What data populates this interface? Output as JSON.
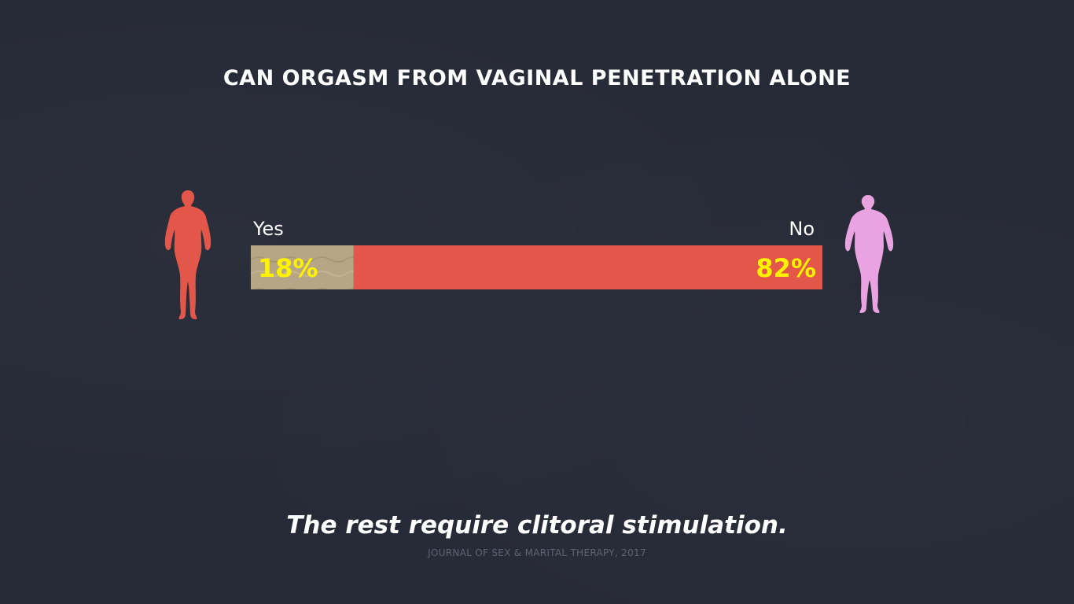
{
  "colors": {
    "background": "#262a36",
    "yes_fill": "#b6a685",
    "no_fill": "#e3574a",
    "value_label": "#fff200",
    "figure_left": "#e3574a",
    "figure_right": "#e8a3e0"
  },
  "chart_data": {
    "type": "bar",
    "orientation": "horizontal-stacked",
    "title": "CAN ORGASM FROM VAGINAL PENETRATION ALONE",
    "categories": [
      "Yes",
      "No"
    ],
    "values": [
      18,
      82
    ],
    "value_labels": [
      "18%",
      "82%"
    ],
    "unit": "%",
    "xlim": [
      0,
      100
    ]
  },
  "caption": "The rest require clitoral stimulation.",
  "source": "JOURNAL OF SEX & MARITAL THERAPY, 2017",
  "icons": {
    "left": "woman-figure-icon",
    "right": "woman-figure-icon"
  }
}
